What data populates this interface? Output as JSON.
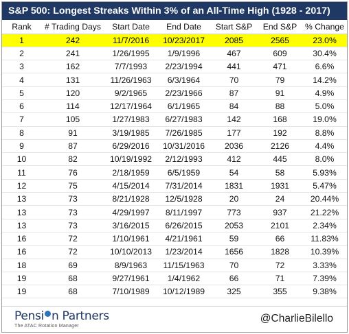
{
  "title": "S&P 500: Longest Streaks Within 3% of an All-Time High (1928 - 2017)",
  "colors": {
    "header_bg": "#1f3864",
    "highlight": "#ffff00",
    "brand": "#1f3864",
    "brand_accent": "#2e75b6"
  },
  "columns": [
    "Rank",
    "# Trading Days",
    "Start Date",
    "End Date",
    "Start S&P",
    "End S&P",
    "% Change"
  ],
  "rows": [
    [
      "1",
      "242",
      "11/7/2016",
      "10/23/2017",
      "2085",
      "2565",
      "23.0%"
    ],
    [
      "2",
      "241",
      "1/26/1995",
      "1/9/1996",
      "467",
      "609",
      "30.4%"
    ],
    [
      "3",
      "162",
      "7/7/1993",
      "2/23/1994",
      "441",
      "471",
      "6.6%"
    ],
    [
      "4",
      "131",
      "11/26/1963",
      "6/3/1964",
      "70",
      "79",
      "14.2%"
    ],
    [
      "5",
      "120",
      "9/2/1965",
      "2/23/1966",
      "87",
      "91",
      "4.9%"
    ],
    [
      "6",
      "114",
      "12/17/1964",
      "6/1/1965",
      "84",
      "88",
      "5.0%"
    ],
    [
      "7",
      "105",
      "1/27/1983",
      "6/27/1983",
      "142",
      "168",
      "19.0%"
    ],
    [
      "8",
      "91",
      "3/19/1985",
      "7/26/1985",
      "177",
      "192",
      "8.8%"
    ],
    [
      "9",
      "87",
      "6/29/2016",
      "10/31/2016",
      "2036",
      "2126",
      "4.4%"
    ],
    [
      "10",
      "82",
      "10/19/1992",
      "2/12/1993",
      "412",
      "445",
      "8.0%"
    ],
    [
      "11",
      "76",
      "2/18/1959",
      "6/5/1959",
      "54",
      "58",
      "5.93%"
    ],
    [
      "12",
      "75",
      "4/15/2014",
      "7/31/2014",
      "1831",
      "1931",
      "5.47%"
    ],
    [
      "13",
      "73",
      "8/21/1928",
      "12/5/1928",
      "20",
      "24",
      "20.44%"
    ],
    [
      "13",
      "73",
      "4/29/1997",
      "8/11/1997",
      "773",
      "937",
      "21.22%"
    ],
    [
      "13",
      "73",
      "3/16/2015",
      "6/26/2015",
      "2053",
      "2101",
      "2.34%"
    ],
    [
      "16",
      "72",
      "1/10/1961",
      "4/21/1961",
      "59",
      "66",
      "11.83%"
    ],
    [
      "16",
      "72",
      "10/10/2013",
      "1/23/2014",
      "1656",
      "1828",
      "10.39%"
    ],
    [
      "18",
      "69",
      "8/9/1963",
      "11/15/1963",
      "70",
      "72",
      "3.33%"
    ],
    [
      "19",
      "68",
      "9/27/1961",
      "1/4/1962",
      "66",
      "71",
      "7.39%"
    ],
    [
      "19",
      "68",
      "7/10/1989",
      "10/12/1989",
      "325",
      "355",
      "9.38%"
    ]
  ],
  "footer": {
    "brand_before_dot": "Pensi",
    "brand_after_dot": "n Partners",
    "tagline": "The ATAC Rotation Manager",
    "handle": "@CharlieBilello"
  }
}
